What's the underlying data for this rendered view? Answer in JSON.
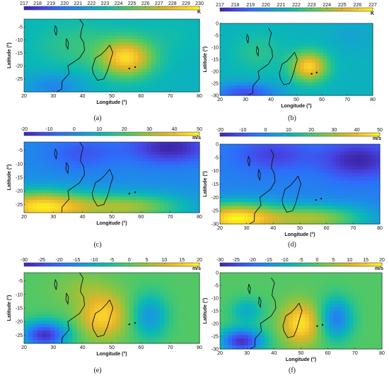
{
  "chart_data": [
    {
      "type": "heatmap",
      "panel": "(a)",
      "colorbar": {
        "min": 217,
        "max": 230,
        "ticks": [
          217,
          218,
          219,
          220,
          221,
          222,
          223,
          224,
          225,
          226,
          227,
          228,
          229,
          230
        ],
        "unit": "K"
      },
      "xlabel": "Longitude (°)",
      "ylabel": "Latitude (°)",
      "xlim": [
        20,
        80
      ],
      "ylim": [
        -30,
        -2
      ],
      "xticks": [
        20,
        30,
        40,
        50,
        60,
        70,
        80
      ],
      "yticks": [
        -5,
        -10,
        -15,
        -20,
        -25
      ],
      "field": {
        "base": 222.5,
        "blobs": [
          [
            55,
            -17,
            6.5,
            9,
            7
          ],
          [
            38,
            -12,
            1.5,
            14,
            9
          ],
          [
            30,
            -28,
            -2,
            10,
            5
          ],
          [
            70,
            -8,
            0.5,
            12,
            8
          ]
        ]
      }
    },
    {
      "type": "heatmap",
      "panel": "(b)",
      "colorbar": {
        "min": 217,
        "max": 227,
        "ticks": [
          217,
          218,
          219,
          220,
          221,
          222,
          223,
          224,
          225,
          226,
          227
        ],
        "unit": "K"
      },
      "xlabel": "Longitude (°)",
      "ylabel": "Latitude (°)",
      "xlim": [
        20,
        80
      ],
      "ylim": [
        -30,
        0
      ],
      "xticks": [
        20,
        30,
        40,
        50,
        60,
        70,
        80
      ],
      "yticks": [
        0,
        -5,
        -10,
        -15,
        -20,
        -25,
        -30
      ],
      "field": {
        "base": 221.2,
        "blobs": [
          [
            55,
            -18,
            5,
            7,
            6
          ],
          [
            30,
            -29,
            -3,
            12,
            4
          ],
          [
            35,
            -12,
            1,
            10,
            8
          ],
          [
            72,
            -5,
            -0.5,
            8,
            6
          ]
        ]
      }
    },
    {
      "type": "heatmap",
      "panel": "(c)",
      "colorbar": {
        "min": -20,
        "max": 50,
        "ticks": [
          -20,
          -10,
          0,
          10,
          20,
          30,
          40,
          50
        ],
        "unit": "m/s"
      },
      "xlabel": "Longitude (°)",
      "ylabel": "Latitude (°)",
      "xlim": [
        20,
        80
      ],
      "ylim": [
        -28,
        -2
      ],
      "xticks": [
        20,
        30,
        40,
        50,
        60,
        70,
        80
      ],
      "yticks": [
        -5,
        -10,
        -15,
        -20,
        -25
      ],
      "field": {
        "base": 0,
        "blobs": [
          [
            25,
            -26,
            45,
            16,
            6
          ],
          [
            55,
            -26,
            30,
            20,
            5
          ],
          [
            70,
            -4,
            -20,
            14,
            6
          ],
          [
            40,
            -6,
            -10,
            12,
            6
          ]
        ]
      }
    },
    {
      "type": "heatmap",
      "panel": "(d)",
      "colorbar": {
        "min": -20,
        "max": 50,
        "ticks": [
          -20,
          -10,
          0,
          10,
          20,
          30,
          40,
          50
        ],
        "unit": "m/s"
      },
      "xlabel": "Longitude (°)",
      "ylabel": "Latitude (°)",
      "xlim": [
        20,
        80
      ],
      "ylim": [
        -30,
        0
      ],
      "xticks": [
        20,
        30,
        40,
        50,
        60,
        70,
        80
      ],
      "yticks": [
        0,
        -5,
        -10,
        -15,
        -20,
        -25,
        -30
      ],
      "field": {
        "base": -2,
        "blobs": [
          [
            25,
            -28,
            48,
            16,
            6
          ],
          [
            55,
            -28,
            32,
            20,
            5
          ],
          [
            72,
            -6,
            -18,
            14,
            7
          ],
          [
            40,
            -4,
            -12,
            14,
            6
          ]
        ]
      }
    },
    {
      "type": "heatmap",
      "panel": "(e)",
      "colorbar": {
        "min": -30,
        "max": 20,
        "ticks": [
          -30,
          -25,
          -20,
          -15,
          -10,
          -5,
          0,
          5,
          10,
          15,
          20
        ],
        "unit": "m/s"
      },
      "xlabel": "Longitude (°)",
      "ylabel": "Latitude (°)",
      "xlim": [
        20,
        80
      ],
      "ylim": [
        -28,
        -2
      ],
      "xticks": [
        20,
        30,
        40,
        50,
        60,
        70,
        80
      ],
      "yticks": [
        -5,
        -10,
        -15,
        -20,
        -25
      ],
      "field": {
        "base": 0,
        "blobs": [
          [
            47,
            -18,
            16,
            8,
            8
          ],
          [
            27,
            -25,
            -28,
            8,
            5
          ],
          [
            63,
            -18,
            -14,
            6,
            8
          ],
          [
            40,
            -8,
            4,
            10,
            6
          ]
        ]
      }
    },
    {
      "type": "heatmap",
      "panel": "(f)",
      "colorbar": {
        "min": -30,
        "max": 20,
        "ticks": [
          -30,
          -25,
          -20,
          -15,
          -10,
          -5,
          0,
          5,
          10,
          15,
          20
        ],
        "unit": "m/s"
      },
      "xlabel": "Longitude (°)",
      "ylabel": "Latitude (°)",
      "xlim": [
        20,
        80
      ],
      "ylim": [
        -30,
        0
      ],
      "xticks": [
        20,
        30,
        40,
        50,
        60,
        70,
        80
      ],
      "yticks": [
        0,
        -5,
        -10,
        -15,
        -20,
        -25,
        -30
      ],
      "field": {
        "base": 0,
        "blobs": [
          [
            50,
            -20,
            18,
            7,
            8
          ],
          [
            28,
            -27,
            -28,
            8,
            5
          ],
          [
            63,
            -18,
            -18,
            6,
            8
          ],
          [
            30,
            -15,
            -10,
            6,
            5
          ]
        ]
      }
    }
  ],
  "coastline": {
    "africa": [
      [
        39,
        -2
      ],
      [
        40.2,
        -4
      ],
      [
        39.5,
        -7
      ],
      [
        39.3,
        -9
      ],
      [
        40.4,
        -11
      ],
      [
        40.7,
        -14
      ],
      [
        39,
        -17
      ],
      [
        35,
        -20
      ],
      [
        35.4,
        -23
      ],
      [
        33,
        -26
      ],
      [
        32.9,
        -29
      ],
      [
        31,
        -30
      ]
    ],
    "madagascar": [
      [
        49.3,
        -12
      ],
      [
        50.4,
        -15
      ],
      [
        49.8,
        -17
      ],
      [
        49.3,
        -19
      ],
      [
        48.5,
        -22
      ],
      [
        47.3,
        -25
      ],
      [
        45.1,
        -25.6
      ],
      [
        43.7,
        -23
      ],
      [
        43.3,
        -21
      ],
      [
        44.4,
        -17
      ],
      [
        46.3,
        -15.7
      ],
      [
        48,
        -13.8
      ],
      [
        49.3,
        -12
      ]
    ],
    "lake_a": [
      [
        30.7,
        -4.5
      ],
      [
        31.3,
        -6
      ],
      [
        31,
        -8.3
      ],
      [
        30.4,
        -6.5
      ],
      [
        30.7,
        -4.5
      ]
    ],
    "lake_b": [
      [
        34.5,
        -9.5
      ],
      [
        35.2,
        -11
      ],
      [
        35,
        -13.5
      ],
      [
        34.3,
        -12
      ],
      [
        34.5,
        -9.5
      ]
    ],
    "points": [
      [
        56,
        -21
      ],
      [
        58,
        -20.5
      ]
    ]
  }
}
